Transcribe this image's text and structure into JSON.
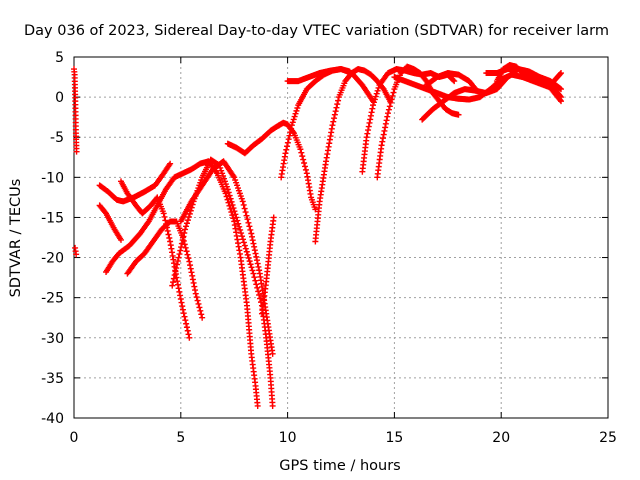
{
  "chart_data": {
    "type": "scatter",
    "title": "Day 036 of 2023, Sidereal Day-to-day VTEC variation (SDTVAR) for receiver larm",
    "xlabel": "GPS time / hours",
    "ylabel": "SDTVAR / TECUs",
    "xlim": [
      0,
      25
    ],
    "ylim": [
      -40,
      5
    ],
    "xticks": [
      "0",
      "5",
      "10",
      "15",
      "20",
      "25"
    ],
    "yticks": [
      "5",
      "0",
      "-5",
      "-10",
      "-15",
      "-20",
      "-25",
      "-30",
      "-35",
      "-40"
    ],
    "grid": true,
    "marker": "+",
    "color": "#ff0000",
    "series": [
      {
        "x": [
          0.0,
          0.03,
          0.06,
          0.09,
          0.12
        ],
        "y": [
          3.5,
          2.8,
          -0.5,
          -4.5,
          -6.8
        ]
      },
      {
        "x": [
          0.05,
          0.1
        ],
        "y": [
          -18.8,
          -19.6
        ]
      },
      {
        "x": [
          1.2,
          1.6,
          2.0,
          2.3,
          2.8,
          3.3,
          3.8,
          4.2,
          4.5
        ],
        "y": [
          -11.0,
          -11.8,
          -12.8,
          -13.0,
          -12.5,
          -11.8,
          -11.0,
          -9.5,
          -8.3
        ]
      },
      {
        "x": [
          1.2,
          1.5,
          1.9,
          2.2
        ],
        "y": [
          -13.5,
          -14.5,
          -16.5,
          -17.8
        ]
      },
      {
        "x": [
          1.5,
          1.8,
          2.1,
          2.6,
          3.1,
          3.5,
          3.9,
          4.3,
          4.7,
          5.1,
          5.5,
          5.9,
          6.3,
          6.7,
          7.1,
          7.5,
          7.8,
          8.1,
          8.3,
          8.5,
          8.6
        ],
        "y": [
          -21.8,
          -20.5,
          -19.5,
          -18.5,
          -17.0,
          -15.5,
          -13.5,
          -11.5,
          -10.0,
          -9.5,
          -9.0,
          -8.3,
          -8.0,
          -9.5,
          -12.0,
          -15.5,
          -20.0,
          -26.0,
          -32.0,
          -36.0,
          -38.5
        ]
      },
      {
        "x": [
          2.5,
          2.9,
          3.3,
          3.7,
          4.1,
          4.5,
          4.8,
          5.1,
          5.4,
          5.7,
          6.0
        ],
        "y": [
          -22.0,
          -20.5,
          -19.5,
          -18.0,
          -16.5,
          -15.5,
          -15.5,
          -17.5,
          -20.5,
          -24.5,
          -27.5
        ]
      },
      {
        "x": [
          2.2,
          2.5,
          2.9,
          3.2,
          3.6,
          3.9,
          4.2,
          4.5,
          4.8,
          5.1,
          5.4
        ],
        "y": [
          -10.5,
          -12.0,
          -13.5,
          -14.5,
          -13.5,
          -12.5,
          -14.5,
          -18.0,
          -22.5,
          -26.5,
          -30.0
        ]
      },
      {
        "x": [
          4.6,
          4.9,
          5.2,
          5.6,
          6.0,
          6.4,
          6.8,
          7.2,
          7.6,
          8.0,
          8.4,
          8.8,
          9.0,
          9.2,
          9.3
        ],
        "y": [
          -23.5,
          -20.0,
          -16.5,
          -13.0,
          -10.0,
          -7.8,
          -8.5,
          -11.5,
          -15.0,
          -18.5,
          -22.0,
          -26.0,
          -30.0,
          -35.0,
          -38.5
        ]
      },
      {
        "x": [
          5.0,
          5.5,
          6.0,
          6.5,
          7.0,
          7.5,
          7.9,
          8.3,
          8.7,
          9.0,
          9.3
        ],
        "y": [
          -15.5,
          -13.0,
          -11.0,
          -9.0,
          -8.0,
          -10.0,
          -13.0,
          -17.0,
          -22.0,
          -27.0,
          -32.0
        ]
      },
      {
        "x": [
          8.8,
          9.0,
          9.2,
          9.35
        ],
        "y": [
          -27.0,
          -23.0,
          -18.0,
          -15.0
        ]
      },
      {
        "x": [
          7.2,
          7.6,
          8.0,
          8.4,
          8.8,
          9.2,
          9.6
        ],
        "y": [
          -5.8,
          -6.3,
          -7.0,
          -6.0,
          -5.2,
          -4.2,
          -3.5
        ]
      },
      {
        "x": [
          9.6,
          9.8,
          10.0,
          10.3,
          10.6,
          10.9,
          11.1,
          11.3
        ],
        "y": [
          -3.5,
          -3.2,
          -3.4,
          -4.5,
          -6.5,
          -9.5,
          -12.5,
          -14.0
        ]
      },
      {
        "x": [
          9.7,
          9.9,
          10.2,
          10.5,
          10.9,
          11.3,
          11.7,
          12.1,
          12.5,
          12.9
        ],
        "y": [
          -10.0,
          -7.0,
          -3.5,
          -1.0,
          1.0,
          2.0,
          2.8,
          3.3,
          3.5,
          3.2
        ]
      },
      {
        "x": [
          10.0,
          10.5,
          11.0,
          11.5,
          12.0,
          12.5,
          13.0,
          13.5,
          14.0
        ],
        "y": [
          2.0,
          2.0,
          2.5,
          3.0,
          3.3,
          3.5,
          3.0,
          1.5,
          -0.5
        ]
      },
      {
        "x": [
          11.3,
          11.5,
          11.8,
          12.1,
          12.4,
          12.7,
          13.0,
          13.3,
          13.6,
          13.9,
          14.2,
          14.5,
          14.8
        ],
        "y": [
          -18.0,
          -13.0,
          -8.0,
          -3.5,
          0.0,
          2.0,
          3.0,
          3.5,
          3.3,
          2.8,
          2.0,
          1.0,
          -0.5
        ]
      },
      {
        "x": [
          13.5,
          13.7,
          14.0,
          14.3,
          14.7,
          15.1,
          15.5,
          15.9,
          16.3,
          16.7,
          17.1,
          17.5,
          17.8
        ],
        "y": [
          -9.3,
          -5.0,
          -1.0,
          1.5,
          3.0,
          3.5,
          3.3,
          3.0,
          2.8,
          3.0,
          2.5,
          2.8,
          2.0
        ]
      },
      {
        "x": [
          14.2,
          14.4,
          14.7,
          15.0,
          15.3,
          15.6,
          15.9,
          16.2,
          16.5,
          16.8,
          17.1,
          17.4,
          17.7,
          18.0
        ],
        "y": [
          -10.0,
          -6.0,
          -2.0,
          1.0,
          3.0,
          3.8,
          3.5,
          3.0,
          2.0,
          0.5,
          -0.5,
          -1.5,
          -2.0,
          -2.2
        ]
      },
      {
        "x": [
          15.0,
          15.5,
          16.0,
          16.5,
          17.0,
          17.5,
          18.0,
          18.5,
          19.0,
          19.5,
          20.0,
          20.5,
          21.0,
          21.5,
          22.0,
          22.5,
          22.8
        ],
        "y": [
          2.5,
          2.0,
          1.5,
          1.0,
          0.5,
          0.0,
          -0.2,
          -0.3,
          0.0,
          1.0,
          2.2,
          2.8,
          2.5,
          2.0,
          1.5,
          1.0,
          0.0
        ]
      },
      {
        "x": [
          16.3,
          16.8,
          17.3,
          17.8,
          18.3,
          18.8,
          19.3,
          19.8,
          20.3,
          20.8,
          21.3,
          21.8,
          22.3,
          22.8
        ],
        "y": [
          -2.8,
          -1.5,
          -0.5,
          0.5,
          1.0,
          0.8,
          0.5,
          1.0,
          2.5,
          3.5,
          3.0,
          2.0,
          1.5,
          3.0
        ]
      },
      {
        "x": [
          16.5,
          17.0,
          17.5,
          18.0,
          18.5,
          18.8
        ],
        "y": [
          1.5,
          2.5,
          3.0,
          2.8,
          2.0,
          1.0
        ]
      },
      {
        "x": [
          19.3,
          19.8,
          20.3,
          20.8,
          21.3,
          21.8,
          22.3,
          22.8
        ],
        "y": [
          3.0,
          3.0,
          3.5,
          3.5,
          3.2,
          2.5,
          2.0,
          1.0
        ]
      },
      {
        "x": [
          19.8,
          20.1,
          20.4,
          20.7,
          21.0,
          21.3,
          21.6,
          21.9,
          22.2,
          22.5,
          22.8
        ],
        "y": [
          2.0,
          3.5,
          4.0,
          3.8,
          3.0,
          2.5,
          2.5,
          2.0,
          1.5,
          0.5,
          -0.5
        ]
      }
    ]
  }
}
